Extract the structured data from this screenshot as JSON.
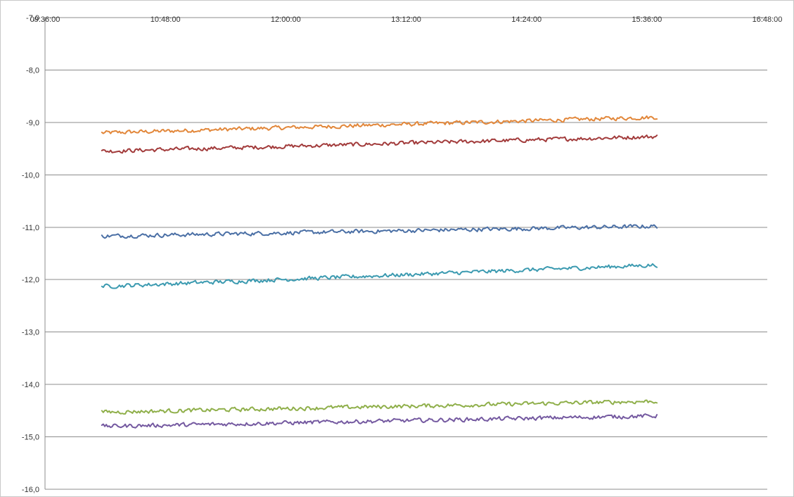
{
  "chart_data": {
    "type": "line",
    "title": "",
    "xlabel": "",
    "ylabel": "",
    "x_axis_position": "top",
    "x_ticks": [
      "09:36:00",
      "10:48:00",
      "12:00:00",
      "13:12:00",
      "14:24:00",
      "15:36:00",
      "16:48:00"
    ],
    "xlim": [
      "09:36:00",
      "16:48:00"
    ],
    "y_ticks": [
      "-7,0",
      "-8,0",
      "-9,0",
      "-10,0",
      "-11,0",
      "-12,0",
      "-13,0",
      "-14,0",
      "-15,0",
      "-16,0"
    ],
    "ylim": [
      -16.0,
      -7.0
    ],
    "grid": "horizontal",
    "legend": "none",
    "x_start": "10:10:00",
    "x_end": "15:42:00",
    "series": [
      {
        "color": "#E2873A",
        "start": -9.2,
        "end": -8.9
      },
      {
        "color": "#A23B3B",
        "start": -9.55,
        "end": -9.27
      },
      {
        "color": "#4A6FA5",
        "start": -11.17,
        "end": -10.98
      },
      {
        "color": "#3B9AB0",
        "start": -12.13,
        "end": -11.72
      },
      {
        "color": "#8FAF4A",
        "start": -14.53,
        "end": -14.32
      },
      {
        "color": "#7459A0",
        "start": -14.8,
        "end": -14.6
      }
    ]
  }
}
